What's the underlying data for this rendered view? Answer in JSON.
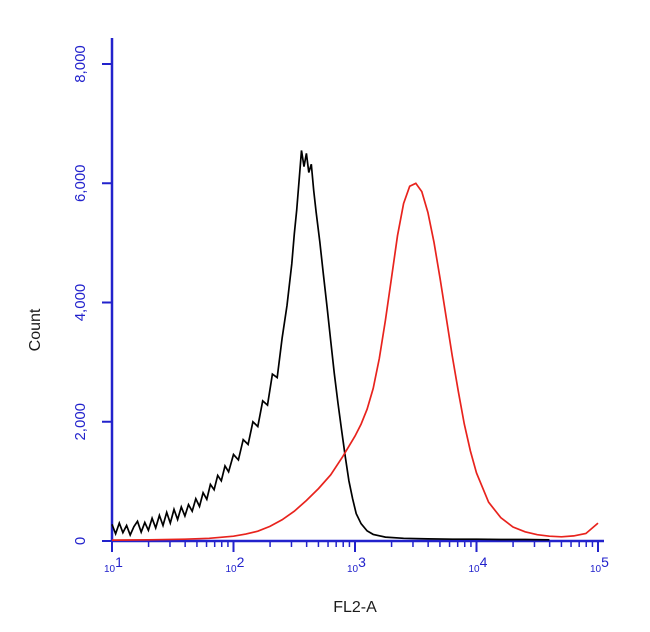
{
  "chart_data": {
    "type": "line",
    "title": "",
    "xlabel": "FL2-A",
    "ylabel": "Count",
    "x_scale": "log10",
    "x_log_range": [
      1,
      5
    ],
    "x_ticks": [
      {
        "base": "10",
        "exp": "1"
      },
      {
        "base": "10",
        "exp": "2"
      },
      {
        "base": "10",
        "exp": "3"
      },
      {
        "base": "10",
        "exp": "4"
      },
      {
        "base": "10",
        "exp": "5"
      }
    ],
    "ylim": [
      0,
      8000
    ],
    "y_ticks": [
      {
        "value": 0,
        "label": "0"
      },
      {
        "value": 2000,
        "label": "2,000"
      },
      {
        "value": 4000,
        "label": "4,000"
      },
      {
        "value": 6000,
        "label": "6,000"
      },
      {
        "value": 8000,
        "label": "8,000"
      }
    ],
    "grid": false,
    "legend": "none",
    "series": [
      {
        "name": "black-histogram",
        "color": "#000000",
        "peak": {
          "x_log": 2.56,
          "count": 6550
        },
        "points": [
          [
            1.0,
            280
          ],
          [
            1.03,
            120
          ],
          [
            1.06,
            300
          ],
          [
            1.09,
            140
          ],
          [
            1.12,
            260
          ],
          [
            1.15,
            100
          ],
          [
            1.18,
            240
          ],
          [
            1.21,
            330
          ],
          [
            1.24,
            150
          ],
          [
            1.27,
            310
          ],
          [
            1.3,
            180
          ],
          [
            1.33,
            380
          ],
          [
            1.36,
            220
          ],
          [
            1.39,
            430
          ],
          [
            1.42,
            260
          ],
          [
            1.45,
            480
          ],
          [
            1.48,
            300
          ],
          [
            1.51,
            530
          ],
          [
            1.54,
            360
          ],
          [
            1.57,
            570
          ],
          [
            1.6,
            420
          ],
          [
            1.63,
            610
          ],
          [
            1.66,
            500
          ],
          [
            1.69,
            710
          ],
          [
            1.72,
            580
          ],
          [
            1.75,
            810
          ],
          [
            1.78,
            700
          ],
          [
            1.81,
            950
          ],
          [
            1.84,
            860
          ],
          [
            1.87,
            1100
          ],
          [
            1.9,
            1010
          ],
          [
            1.93,
            1260
          ],
          [
            1.96,
            1160
          ],
          [
            2.0,
            1450
          ],
          [
            2.04,
            1360
          ],
          [
            2.08,
            1700
          ],
          [
            2.12,
            1620
          ],
          [
            2.16,
            2000
          ],
          [
            2.2,
            1920
          ],
          [
            2.24,
            2350
          ],
          [
            2.28,
            2280
          ],
          [
            2.32,
            2800
          ],
          [
            2.36,
            2740
          ],
          [
            2.4,
            3400
          ],
          [
            2.44,
            3950
          ],
          [
            2.48,
            4650
          ],
          [
            2.5,
            5150
          ],
          [
            2.52,
            5550
          ],
          [
            2.54,
            6050
          ],
          [
            2.56,
            6550
          ],
          [
            2.58,
            6280
          ],
          [
            2.6,
            6500
          ],
          [
            2.62,
            6180
          ],
          [
            2.64,
            6320
          ],
          [
            2.66,
            5880
          ],
          [
            2.68,
            5520
          ],
          [
            2.71,
            5020
          ],
          [
            2.74,
            4470
          ],
          [
            2.77,
            3920
          ],
          [
            2.8,
            3360
          ],
          [
            2.83,
            2810
          ],
          [
            2.86,
            2310
          ],
          [
            2.89,
            1860
          ],
          [
            2.92,
            1410
          ],
          [
            2.95,
            1010
          ],
          [
            2.98,
            710
          ],
          [
            3.01,
            460
          ],
          [
            3.05,
            290
          ],
          [
            3.1,
            170
          ],
          [
            3.15,
            110
          ],
          [
            3.25,
            65
          ],
          [
            3.4,
            45
          ],
          [
            3.6,
            35
          ],
          [
            3.8,
            30
          ],
          [
            4.0,
            30
          ],
          [
            4.2,
            25
          ],
          [
            4.4,
            25
          ],
          [
            4.6,
            20
          ]
        ]
      },
      {
        "name": "red-histogram",
        "color": "#e8231d",
        "peak": {
          "x_log": 3.5,
          "count": 6000
        },
        "points": [
          [
            1.0,
            15
          ],
          [
            1.3,
            20
          ],
          [
            1.6,
            30
          ],
          [
            1.8,
            45
          ],
          [
            2.0,
            80
          ],
          [
            2.1,
            115
          ],
          [
            2.2,
            165
          ],
          [
            2.3,
            245
          ],
          [
            2.4,
            355
          ],
          [
            2.5,
            500
          ],
          [
            2.6,
            680
          ],
          [
            2.7,
            880
          ],
          [
            2.8,
            1110
          ],
          [
            2.9,
            1420
          ],
          [
            3.0,
            1760
          ],
          [
            3.05,
            1960
          ],
          [
            3.1,
            2210
          ],
          [
            3.15,
            2560
          ],
          [
            3.2,
            3060
          ],
          [
            3.25,
            3700
          ],
          [
            3.3,
            4400
          ],
          [
            3.35,
            5120
          ],
          [
            3.4,
            5660
          ],
          [
            3.45,
            5950
          ],
          [
            3.5,
            6000
          ],
          [
            3.55,
            5860
          ],
          [
            3.6,
            5510
          ],
          [
            3.65,
            5010
          ],
          [
            3.7,
            4400
          ],
          [
            3.75,
            3760
          ],
          [
            3.8,
            3110
          ],
          [
            3.85,
            2510
          ],
          [
            3.9,
            1960
          ],
          [
            3.95,
            1510
          ],
          [
            4.0,
            1140
          ],
          [
            4.1,
            650
          ],
          [
            4.2,
            390
          ],
          [
            4.3,
            235
          ],
          [
            4.4,
            155
          ],
          [
            4.5,
            105
          ],
          [
            4.6,
            80
          ],
          [
            4.7,
            70
          ],
          [
            4.8,
            85
          ],
          [
            4.9,
            125
          ],
          [
            5.0,
            300
          ]
        ]
      }
    ]
  },
  "colors": {
    "axis": "#2222cc",
    "tick_label": "#2222cc",
    "axis_title": "#1b1b1b",
    "background": "#ffffff"
  }
}
